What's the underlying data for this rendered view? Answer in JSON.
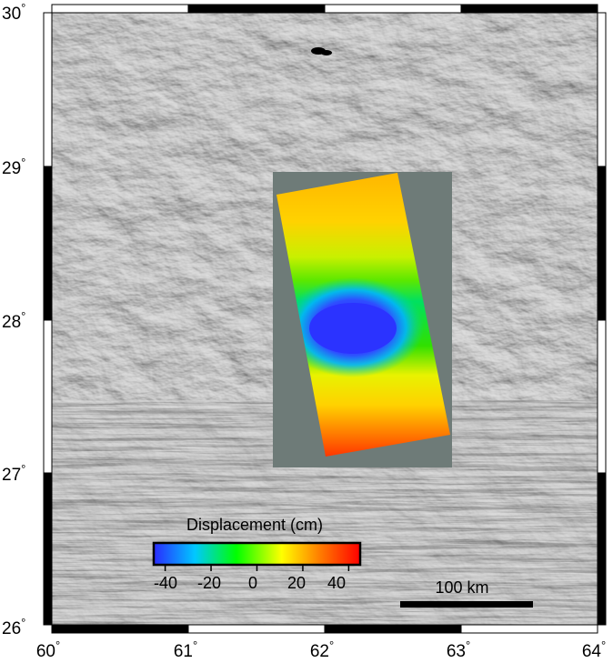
{
  "map": {
    "lon_ticks": [
      {
        "deg": "60",
        "sym": "°"
      },
      {
        "deg": "61",
        "sym": "°"
      },
      {
        "deg": "62",
        "sym": "°"
      },
      {
        "deg": "63",
        "sym": "°"
      },
      {
        "deg": "64",
        "sym": "°"
      }
    ],
    "lat_ticks": [
      {
        "deg": "30",
        "sym": "°"
      },
      {
        "deg": "29",
        "sym": "°"
      },
      {
        "deg": "28",
        "sym": "°"
      },
      {
        "deg": "27",
        "sym": "°"
      },
      {
        "deg": "26",
        "sym": "°"
      }
    ],
    "lon_range": [
      60,
      64
    ],
    "lat_range": [
      26,
      30
    ],
    "colorbar": {
      "title": "Displacement (cm)",
      "tick_labels": [
        "-40",
        "-20",
        "0",
        "20",
        "40"
      ],
      "range": [
        -45,
        45
      ],
      "colors": [
        "#2a2aff",
        "#00c8ff",
        "#00ff00",
        "#ffff00",
        "#ff8000",
        "#ff0000"
      ]
    },
    "scale_bar": {
      "label": "100 km"
    },
    "colors": {
      "background_gray": "#6e7b78",
      "terrain": "#9a9a9a",
      "frame": "#000000"
    }
  }
}
